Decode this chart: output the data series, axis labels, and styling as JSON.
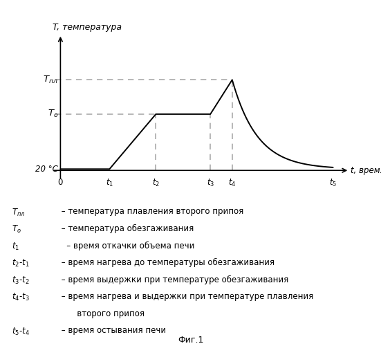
{
  "background_color": "#ffffff",
  "line_color": "#000000",
  "dashed_color": "#aaaaaa",
  "title": "T, температура",
  "xlabel": "t, время",
  "t0": 0.0,
  "t1": 1.8,
  "t2": 3.5,
  "t3": 5.5,
  "t4": 6.3,
  "t5": 10.0,
  "T_room": 0.1,
  "T_o": 0.5,
  "T_pl": 0.75,
  "fig_label": "Фиг.1"
}
